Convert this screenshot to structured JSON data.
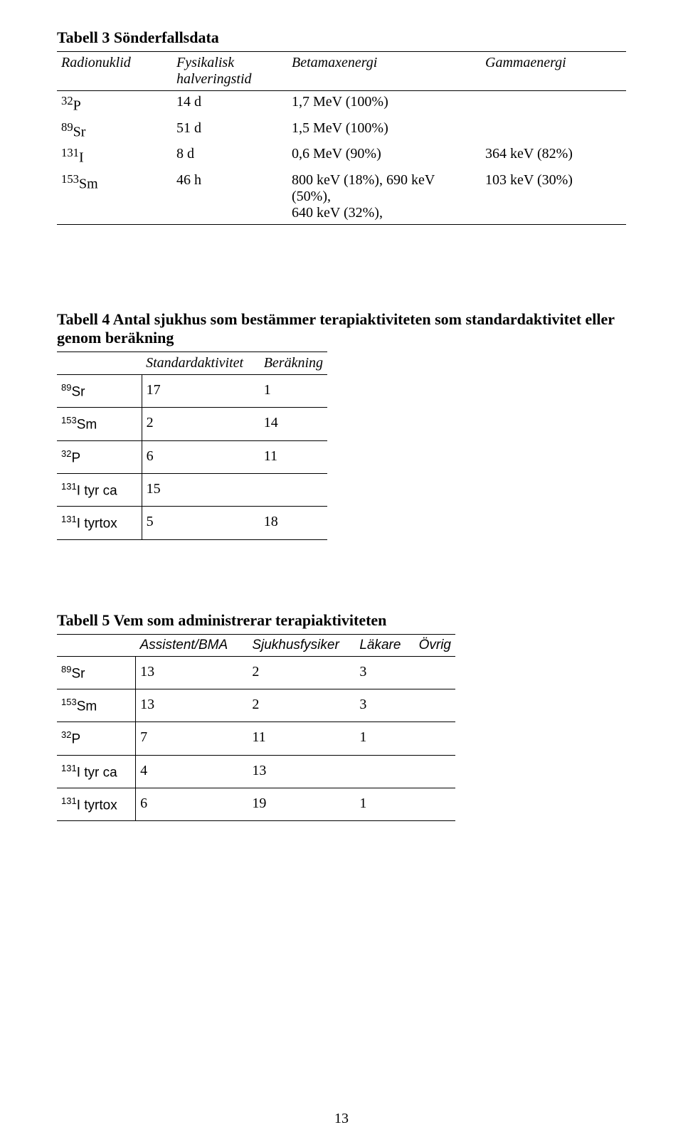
{
  "table3": {
    "title_html": "<b>Tabell 3</b> Sönderfallsdata",
    "headers": {
      "c1": "Radionuklid",
      "c2_html": "Fysikalisk<br>halveringstid",
      "c3": "Betamaxenergi",
      "c4": "Gammaenergi"
    },
    "rows": [
      {
        "nuc_html": "<sup>32</sup>P",
        "hl": "14 d",
        "beta": "1,7 MeV (100%)",
        "gamma": ""
      },
      {
        "nuc_html": "<sup>89</sup>Sr",
        "hl": "51 d",
        "beta": "1,5 MeV (100%)",
        "gamma": ""
      },
      {
        "nuc_html": "<sup>131</sup>I",
        "hl": "8 d",
        "beta": "0,6 MeV (90%)",
        "gamma": "364 keV (82%)"
      },
      {
        "nuc_html": "<sup>153</sup>Sm",
        "hl": "46 h",
        "beta_html": "800 keV (18%), 690 keV (50%),<br>640 keV (32%),",
        "gamma": "103 keV (30%)"
      }
    ]
  },
  "table4": {
    "title_html": "<b>Tabell 4</b> Antal sjukhus som bestämmer terapiaktiviteten som standardaktivitet eller genom beräkning",
    "headers": {
      "c2": "Standardaktivitet",
      "c3": "Beräkning"
    },
    "rows": [
      {
        "nuc_html": "<sup>89</sup>Sr",
        "std": "17",
        "calc": "1"
      },
      {
        "nuc_html": "<sup>153</sup>Sm",
        "std": "2",
        "calc": "14"
      },
      {
        "nuc_html": "<sup>32</sup>P",
        "std": "6",
        "calc": "11"
      },
      {
        "nuc_html": "<sup>131</sup>I tyr ca",
        "std": "15",
        "calc": ""
      },
      {
        "nuc_html": "<sup>131</sup>I tyrtox",
        "std": "5",
        "calc": "18"
      }
    ]
  },
  "table5": {
    "title_html": "<b>Tabell 5</b> Vem som administrerar terapiaktiviteten",
    "headers": {
      "c2": "Assistent/BMA",
      "c3": "Sjukhusfysiker",
      "c4": "Läkare",
      "c5": "Övrig"
    },
    "rows": [
      {
        "nuc_html": "<sup>89</sup>Sr",
        "a": "13",
        "b": "2",
        "c": "3",
        "d": ""
      },
      {
        "nuc_html": "<sup>153</sup>Sm",
        "a": "13",
        "b": "2",
        "c": "3",
        "d": ""
      },
      {
        "nuc_html": "<sup>32</sup>P",
        "a": "7",
        "b": "11",
        "c": "1",
        "d": ""
      },
      {
        "nuc_html": "<sup>131</sup>I tyr ca",
        "a": "4",
        "b": "13",
        "c": "",
        "d": ""
      },
      {
        "nuc_html": "<sup>131</sup>I tyrtox",
        "a": "6",
        "b": "19",
        "c": "1",
        "d": ""
      }
    ]
  },
  "page_number": "13"
}
